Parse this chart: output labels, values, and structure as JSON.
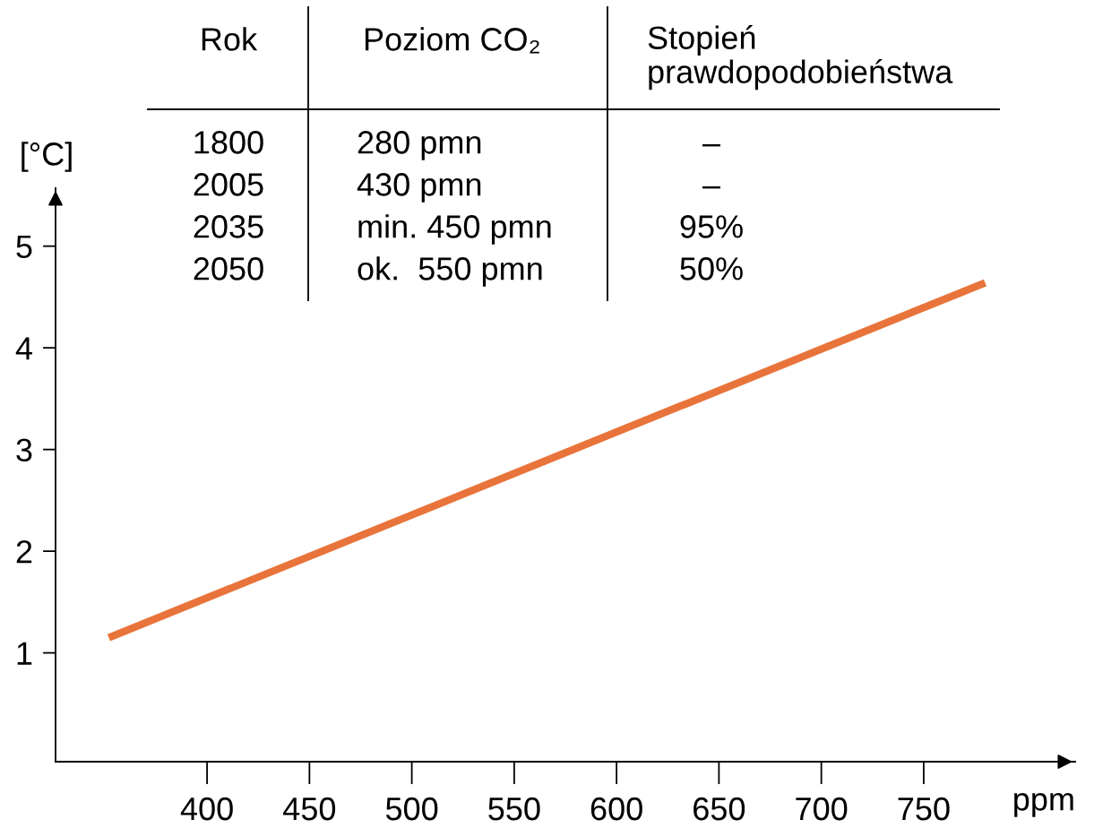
{
  "chart_data": {
    "type": "line",
    "xlabel": "ppm",
    "ylabel": "[°C]",
    "x": [
      352,
      780
    ],
    "series": [
      {
        "color": "#e8743b",
        "values": [
          1.15,
          4.64
        ]
      }
    ],
    "xlim": [
      326,
      824
    ],
    "ylim": [
      -0.07,
      5.57
    ],
    "xticks": [
      400,
      450,
      500,
      550,
      600,
      650,
      700,
      750
    ],
    "yticks": [
      1,
      2,
      3,
      4,
      5
    ],
    "grid": false,
    "legend": false,
    "line_style": "solid",
    "marker": "none",
    "annotations": [
      "Rok",
      "Poziom CO₂",
      "Stopień\nprawdopodobieństwa",
      "1800",
      "280 pmn",
      "–",
      "2005",
      "430 pmn",
      "–",
      "2035",
      "min. 450 pmn",
      "95%",
      "2050",
      "ok.  550 pmn",
      "50%"
    ]
  }
}
